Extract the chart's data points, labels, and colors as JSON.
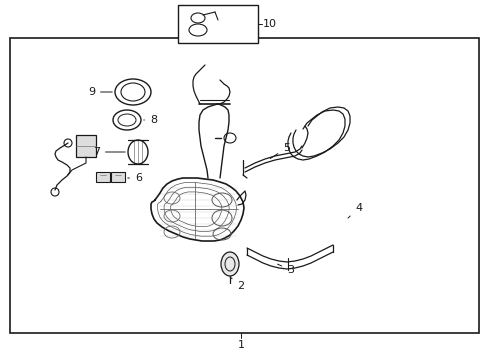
{
  "bg_color": "#ffffff",
  "line_color": "#1a1a1a",
  "lw": 0.9,
  "fig_w": 4.89,
  "fig_h": 3.6,
  "dpi": 100
}
